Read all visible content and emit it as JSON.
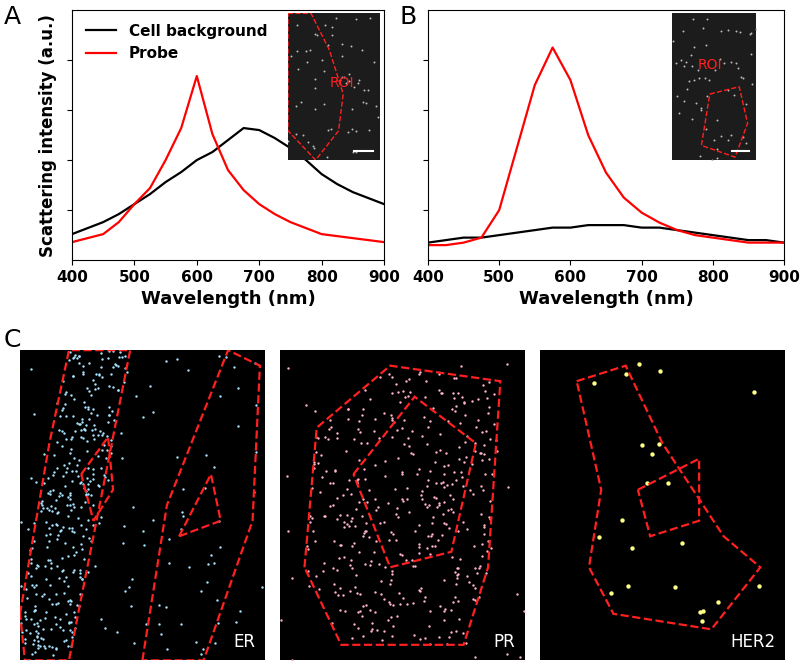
{
  "chart_data": [
    {
      "type": "line",
      "panel_label": "A",
      "inset_label": "ROI",
      "x_label": "Wavelength (nm)",
      "y_label": "Scattering intensity (a.u.)",
      "x": [
        400,
        425,
        450,
        475,
        500,
        525,
        550,
        575,
        600,
        625,
        650,
        675,
        700,
        725,
        750,
        775,
        800,
        825,
        850,
        875,
        900
      ],
      "series": [
        {
          "name": "Cell background",
          "color": "#000000",
          "values": [
            0.13,
            0.16,
            0.19,
            0.23,
            0.28,
            0.33,
            0.39,
            0.44,
            0.5,
            0.54,
            0.6,
            0.66,
            0.65,
            0.61,
            0.56,
            0.5,
            0.43,
            0.38,
            0.34,
            0.31,
            0.28
          ]
        },
        {
          "name": "Probe",
          "color": "#ff0000",
          "values": [
            0.09,
            0.11,
            0.13,
            0.19,
            0.28,
            0.36,
            0.5,
            0.66,
            0.92,
            0.63,
            0.45,
            0.35,
            0.28,
            0.23,
            0.19,
            0.16,
            0.13,
            0.12,
            0.11,
            0.1,
            0.09
          ]
        }
      ],
      "xlim": [
        400,
        900
      ],
      "xticks": [
        400,
        500,
        600,
        700,
        800,
        900
      ],
      "ylim": [
        0,
        1.25
      ],
      "yticks": [
        0.25,
        0.5,
        0.75,
        1.0
      ],
      "tick_labels": "x",
      "legend": "upper left"
    },
    {
      "type": "line",
      "panel_label": "B",
      "inset_label": "ROI",
      "x_label": "Wavelength (nm)",
      "x": [
        400,
        425,
        450,
        475,
        500,
        525,
        550,
        575,
        600,
        625,
        650,
        675,
        700,
        725,
        750,
        775,
        800,
        825,
        850,
        875,
        900
      ],
      "series": [
        {
          "color": "#000000",
          "values": [
            0.07,
            0.08,
            0.09,
            0.09,
            0.1,
            0.11,
            0.12,
            0.13,
            0.13,
            0.14,
            0.14,
            0.14,
            0.13,
            0.13,
            0.12,
            0.11,
            0.1,
            0.09,
            0.08,
            0.08,
            0.07
          ]
        },
        {
          "color": "#ff0000",
          "values": [
            0.06,
            0.06,
            0.07,
            0.09,
            0.2,
            0.45,
            0.7,
            0.85,
            0.72,
            0.5,
            0.35,
            0.25,
            0.19,
            0.15,
            0.12,
            0.1,
            0.09,
            0.08,
            0.07,
            0.07,
            0.07
          ]
        }
      ],
      "xlim": [
        400,
        900
      ],
      "xticks": [
        400,
        500,
        600,
        700,
        800,
        900
      ],
      "ylim": [
        0,
        1.0
      ],
      "yticks": [
        0.2,
        0.4,
        0.6,
        0.8
      ],
      "tick_labels": "x"
    }
  ],
  "images": {
    "panel_label": "C",
    "items": [
      {
        "label": "ER",
        "color": "#a8e4ff"
      },
      {
        "label": "PR",
        "color": "#ffb4c8"
      },
      {
        "label": "HER2",
        "color": "#ffff88"
      }
    ]
  }
}
